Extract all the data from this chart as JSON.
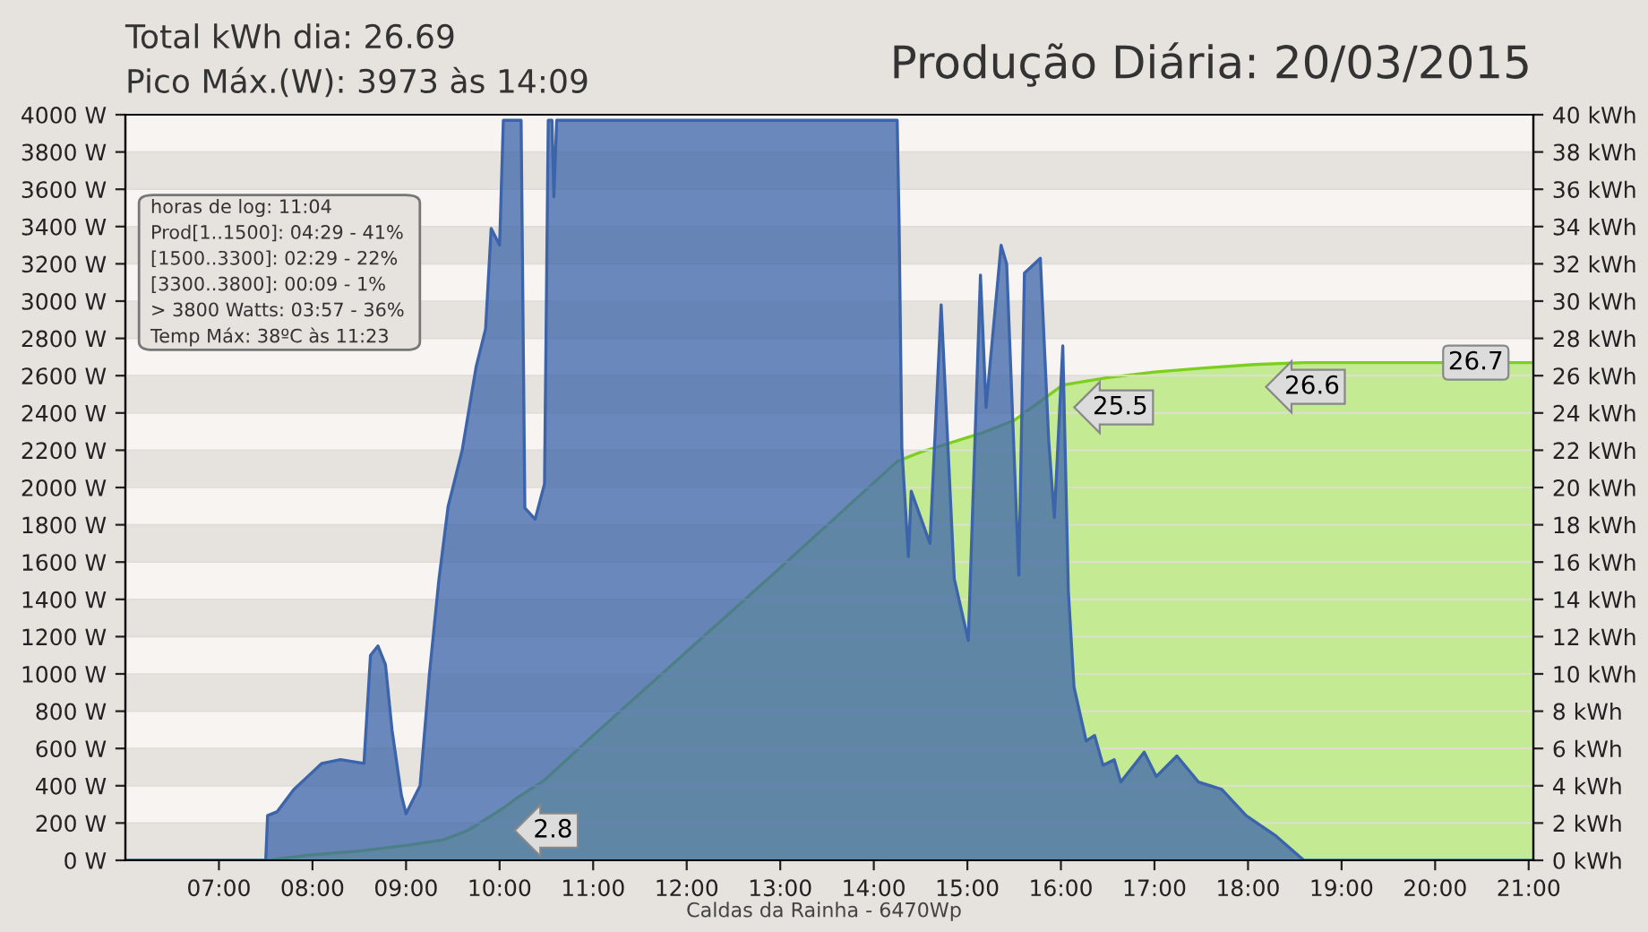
{
  "chart_data": {
    "type": "area",
    "title": "Produção Diária: 20/03/2015",
    "annotations": [
      "Total kWh dia: 26.69",
      "Pico Máx.(W): 3973 às 14:09",
      "horas de log: 11:04",
      "Prod[1..1500]: 04:29 - 41%",
      "[1500..3300]: 02:29 - 22%",
      "[3300..3800]: 00:09 - 1%",
      "> 3800 Watts: 03:57 - 36%",
      "Temp Máx: 38ºC às 11:23",
      "Caldas da Rainha - 6470Wp"
    ],
    "xlim": [
      6.0,
      21.05
    ],
    "xticks": [
      {
        "value": 7,
        "label": "07:00"
      },
      {
        "value": 8,
        "label": "08:00"
      },
      {
        "value": 9,
        "label": "09:00"
      },
      {
        "value": 10,
        "label": "10:00"
      },
      {
        "value": 11,
        "label": "11:00"
      },
      {
        "value": 12,
        "label": "12:00"
      },
      {
        "value": 13,
        "label": "13:00"
      },
      {
        "value": 14,
        "label": "14:00"
      },
      {
        "value": 15,
        "label": "15:00"
      },
      {
        "value": 16,
        "label": "16:00"
      },
      {
        "value": 17,
        "label": "17:00"
      },
      {
        "value": 18,
        "label": "18:00"
      },
      {
        "value": 19,
        "label": "19:00"
      },
      {
        "value": 20,
        "label": "20:00"
      },
      {
        "value": 21,
        "label": "21:00"
      }
    ],
    "ylim": [
      0,
      4000
    ],
    "yticks": [
      {
        "value": 0,
        "label": "0 W"
      },
      {
        "value": 200,
        "label": "200 W"
      },
      {
        "value": 400,
        "label": "400 W"
      },
      {
        "value": 600,
        "label": "600 W"
      },
      {
        "value": 800,
        "label": "800 W"
      },
      {
        "value": 1000,
        "label": "1000 W"
      },
      {
        "value": 1200,
        "label": "1200 W"
      },
      {
        "value": 1400,
        "label": "1400 W"
      },
      {
        "value": 1600,
        "label": "1600 W"
      },
      {
        "value": 1800,
        "label": "1800 W"
      },
      {
        "value": 2000,
        "label": "2000 W"
      },
      {
        "value": 2200,
        "label": "2200 W"
      },
      {
        "value": 2400,
        "label": "2400 W"
      },
      {
        "value": 2600,
        "label": "2600 W"
      },
      {
        "value": 2800,
        "label": "2800 W"
      },
      {
        "value": 3000,
        "label": "3000 W"
      },
      {
        "value": 3200,
        "label": "3200 W"
      },
      {
        "value": 3400,
        "label": "3400 W"
      },
      {
        "value": 3600,
        "label": "3600 W"
      },
      {
        "value": 3800,
        "label": "3800 W"
      },
      {
        "value": 4000,
        "label": "4000 W"
      }
    ],
    "y2lim": [
      0,
      40
    ],
    "y2ticks": [
      {
        "value": 0,
        "label": "0 kWh"
      },
      {
        "value": 2,
        "label": "2 kWh"
      },
      {
        "value": 4,
        "label": "4 kWh"
      },
      {
        "value": 6,
        "label": "6 kWh"
      },
      {
        "value": 8,
        "label": "8 kWh"
      },
      {
        "value": 10,
        "label": "10 kWh"
      },
      {
        "value": 12,
        "label": "12 kWh"
      },
      {
        "value": 14,
        "label": "14 kWh"
      },
      {
        "value": 16,
        "label": "16 kWh"
      },
      {
        "value": 18,
        "label": "18 kWh"
      },
      {
        "value": 20,
        "label": "20 kWh"
      },
      {
        "value": 22,
        "label": "22 kWh"
      },
      {
        "value": 24,
        "label": "24 kWh"
      },
      {
        "value": 26,
        "label": "26 kWh"
      },
      {
        "value": 28,
        "label": "28 kWh"
      },
      {
        "value": 30,
        "label": "30 kWh"
      },
      {
        "value": 32,
        "label": "32 kWh"
      },
      {
        "value": 34,
        "label": "34 kWh"
      },
      {
        "value": 36,
        "label": "36 kWh"
      },
      {
        "value": 38,
        "label": "38 kWh"
      },
      {
        "value": 40,
        "label": "40 kWh"
      }
    ],
    "grid": "y",
    "series": [
      {
        "axis": "y2",
        "color": "#c5ea94",
        "x": [
          6.0,
          7.52,
          8.0,
          8.5,
          9.0,
          9.4,
          9.66,
          9.85,
          10.04,
          10.2,
          10.48,
          11.0,
          12.0,
          13.0,
          14.25,
          14.5,
          15.14,
          15.5,
          16.02,
          16.5,
          17.0,
          17.5,
          18.07,
          18.6,
          21.05
        ],
        "values": [
          0,
          0,
          0.3,
          0.5,
          0.8,
          1.1,
          1.6,
          2.2,
          2.8,
          3.4,
          4.3,
          6.7,
          11.2,
          15.7,
          21.4,
          21.9,
          22.9,
          23.6,
          25.5,
          25.9,
          26.2,
          26.4,
          26.6,
          26.7,
          26.7
        ],
        "value_labels": [
          null,
          null,
          null,
          null,
          null,
          null,
          null,
          null,
          "2.8",
          null,
          null,
          null,
          null,
          null,
          null,
          null,
          null,
          null,
          "25.5",
          null,
          null,
          null,
          "26.6",
          null,
          "26.7"
        ]
      },
      {
        "color": "#3c64aa",
        "x": [
          6.0,
          7.5,
          7.52,
          7.62,
          7.8,
          7.95,
          8.1,
          8.3,
          8.55,
          8.62,
          8.7,
          8.78,
          8.85,
          8.95,
          9.0,
          9.05,
          9.15,
          9.25,
          9.35,
          9.45,
          9.6,
          9.75,
          9.85,
          9.91,
          10.0,
          10.04,
          10.23,
          10.27,
          10.38,
          10.48,
          10.52,
          10.56,
          10.58,
          10.61,
          14.25,
          14.27,
          14.3,
          14.37,
          14.4,
          14.6,
          14.72,
          14.86,
          15.01,
          15.14,
          15.2,
          15.36,
          15.42,
          15.55,
          15.61,
          15.78,
          15.87,
          15.93,
          16.02,
          16.08,
          16.14,
          16.27,
          16.36,
          16.45,
          16.57,
          16.64,
          16.89,
          17.02,
          17.24,
          17.47,
          17.72,
          17.98,
          18.3,
          18.55,
          18.6,
          21.05
        ],
        "values": [
          0,
          0,
          240,
          260,
          380,
          450,
          520,
          540,
          520,
          1100,
          1150,
          1050,
          700,
          350,
          250,
          300,
          400,
          1000,
          1500,
          1900,
          2200,
          2650,
          2850,
          3390,
          3300,
          3970,
          3970,
          1890,
          1830,
          2020,
          3970,
          3970,
          3560,
          3970,
          3970,
          3430,
          2210,
          1630,
          1980,
          1700,
          2980,
          1510,
          1180,
          3140,
          2430,
          3300,
          3200,
          1530,
          3150,
          3230,
          2250,
          1840,
          2760,
          1440,
          930,
          640,
          670,
          510,
          540,
          420,
          580,
          450,
          560,
          420,
          380,
          240,
          130,
          20,
          0,
          0
        ]
      }
    ]
  }
}
